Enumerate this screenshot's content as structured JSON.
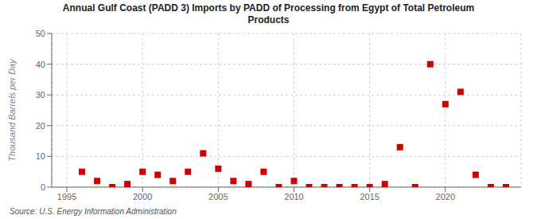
{
  "chart_data": {
    "type": "scatter",
    "title": "Annual Gulf Coast (PADD 3) Imports by PADD of Processing from Egypt of Total Petroleum\nProducts",
    "ylabel": "Thousand Barrels per Day",
    "source": "Source: U.S. Energy Information Administration",
    "x": [
      1996,
      1997,
      1998,
      1999,
      2000,
      2001,
      2002,
      2003,
      2004,
      2005,
      2006,
      2007,
      2008,
      2009,
      2010,
      2011,
      2012,
      2013,
      2014,
      2015,
      2016,
      2017,
      2018,
      2019,
      2020,
      2021,
      2022,
      2023,
      2024
    ],
    "values": [
      5,
      2,
      0,
      1,
      5,
      4,
      2,
      5,
      11,
      6,
      2,
      1,
      5,
      0,
      2,
      0,
      0,
      0,
      0,
      0,
      1,
      13,
      0,
      40,
      27,
      31,
      4,
      0,
      0
    ],
    "xlim": [
      1994,
      2025
    ],
    "ylim": [
      0,
      50
    ],
    "xticks": [
      1995,
      2000,
      2005,
      2010,
      2015,
      2020
    ],
    "yticks": [
      0,
      10,
      20,
      30,
      40,
      50
    ],
    "grid": true,
    "color": "#cc0000",
    "marker": "square"
  }
}
